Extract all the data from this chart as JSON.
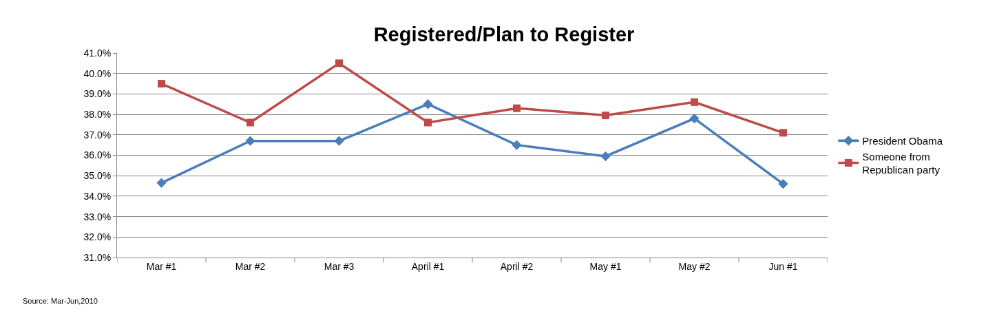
{
  "chart_data": {
    "type": "line",
    "title": "Registered/Plan to Register",
    "categories": [
      "Mar #1",
      "Mar #2",
      "Mar #3",
      "April #1",
      "April #2",
      "May #1",
      "May #2",
      "Jun #1"
    ],
    "series": [
      {
        "name": "President Obama",
        "color": "#4a7ebb",
        "marker": "diamond",
        "values": [
          34.65,
          36.7,
          36.7,
          38.5,
          36.5,
          35.95,
          37.8,
          34.6
        ]
      },
      {
        "name": "Someone from Republican party",
        "color": "#be4b48",
        "marker": "square",
        "values": [
          39.5,
          37.6,
          40.5,
          37.6,
          38.3,
          37.95,
          38.6,
          37.1
        ]
      }
    ],
    "ylim": [
      31,
      41
    ],
    "yticks": [
      {
        "value": 31,
        "label": "31.0%"
      },
      {
        "value": 32,
        "label": "32.0%"
      },
      {
        "value": 33,
        "label": "33.0%"
      },
      {
        "value": 34,
        "label": "34.0%"
      },
      {
        "value": 35,
        "label": "35.0%"
      },
      {
        "value": 36,
        "label": "36.0%"
      },
      {
        "value": 37,
        "label": "37.0%"
      },
      {
        "value": 38,
        "label": "38.0%"
      },
      {
        "value": 39,
        "label": "39.0%"
      },
      {
        "value": 40,
        "label": "40.0%"
      },
      {
        "value": 41,
        "label": "41.0%"
      }
    ],
    "grid": "y",
    "legend": "right",
    "line_style": "solid",
    "annotations": [
      "Source: Mar-Jun,2010"
    ]
  }
}
